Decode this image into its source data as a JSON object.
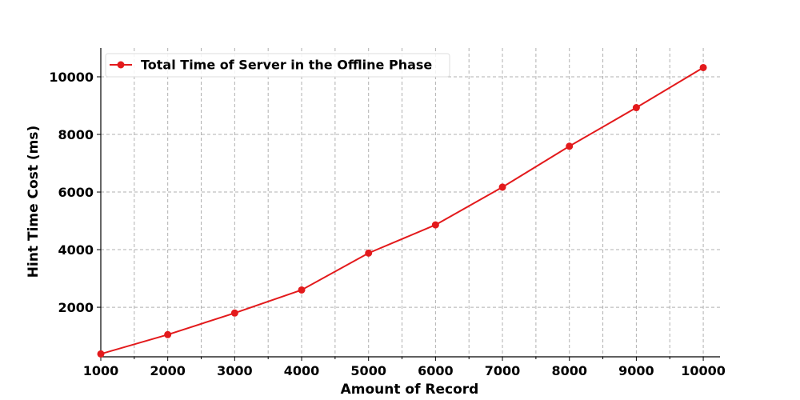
{
  "chart_data": {
    "type": "line",
    "title": "",
    "xlabel": "Amount of Record",
    "ylabel": "Hint Time Cost (ms)",
    "x": [
      1000,
      2000,
      3000,
      4000,
      5000,
      6000,
      7000,
      8000,
      9000,
      10000
    ],
    "series": [
      {
        "name": "Total Time of Server in the Offline Phase",
        "color": "#e31a1c",
        "marker": "circle",
        "values": [
          380,
          1050,
          1800,
          2600,
          3880,
          4860,
          6170,
          7590,
          8930,
          10320
        ]
      }
    ],
    "xlim": [
      1000,
      10250
    ],
    "ylim": [
      280,
      11000
    ],
    "x_ticks": [
      1000,
      2000,
      3000,
      4000,
      5000,
      6000,
      7000,
      8000,
      9000,
      10000
    ],
    "x_minor_ticks": [
      1500,
      2500,
      3500,
      4500,
      5500,
      6500,
      7500,
      8500,
      9500
    ],
    "y_ticks": [
      2000,
      4000,
      6000,
      8000,
      10000
    ],
    "grid": true,
    "grid_style": "dashed",
    "legend_position": "top-left"
  }
}
